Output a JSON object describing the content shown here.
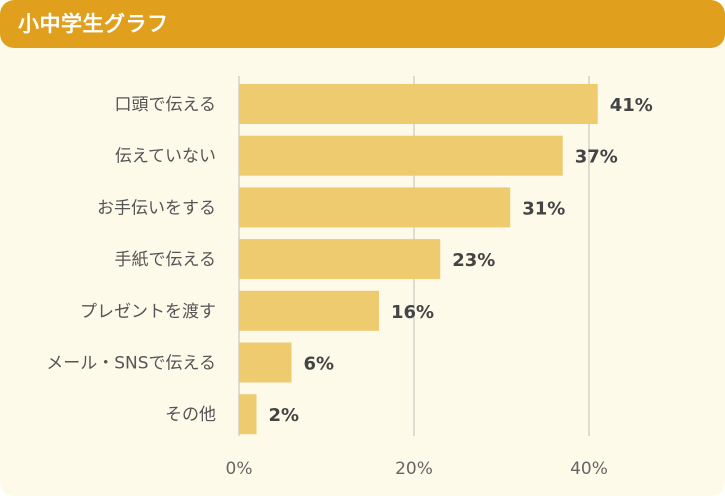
{
  "header": {
    "title": "小中学生グラフ"
  },
  "colors": {
    "header_bg": "#e09f1c",
    "panel_bg": "#fdfaea",
    "bar": "#eecb6f",
    "grid": "#dedbd0"
  },
  "chart_data": {
    "type": "bar",
    "orientation": "horizontal",
    "title": "",
    "xlabel": "",
    "ylabel": "",
    "categories": [
      "口頭で伝える",
      "伝えていない",
      "お手伝いをする",
      "手紙で伝える",
      "プレゼントを渡す",
      "メール・SNSで伝える",
      "その他"
    ],
    "values": [
      41,
      37,
      31,
      23,
      16,
      6,
      2
    ],
    "value_labels": [
      "41%",
      "37%",
      "31%",
      "23%",
      "16%",
      "6%",
      "2%"
    ],
    "xlim": [
      0,
      40
    ],
    "xticks": [
      0,
      20,
      40
    ],
    "xtick_labels": [
      "0%",
      "20%",
      "40%"
    ],
    "grid": true,
    "legend": "none"
  }
}
